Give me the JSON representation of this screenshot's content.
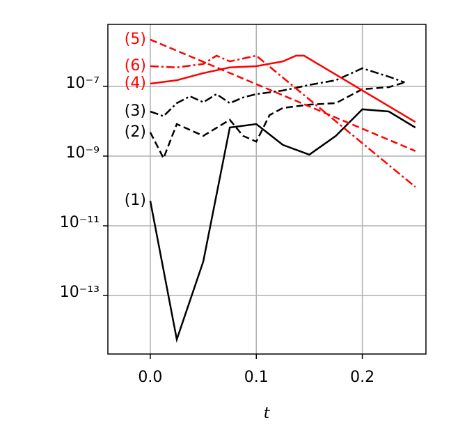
{
  "chart_data": {
    "type": "line",
    "xlabel": "t",
    "yscale": "log",
    "grid": true,
    "xlim": [
      -0.04,
      0.26
    ],
    "ylim": [
      2.1e-15,
      6e-06
    ],
    "xticks": [
      {
        "value": 0,
        "label": "0.0"
      },
      0.1,
      0.2
    ],
    "yticks": [
      {
        "value": 1e-07,
        "label": "10⁻⁷"
      },
      {
        "value": 1e-09,
        "label": "10⁻⁹"
      },
      {
        "value": 1e-11,
        "label": "10⁻¹¹"
      },
      {
        "value": 1e-13,
        "label": "10⁻¹³"
      }
    ],
    "series": [
      {
        "name": "(1)",
        "color": "#000000",
        "linestyle": "solid",
        "x": [
          0,
          0.025,
          0.05,
          0.075,
          0.1,
          0.125,
          0.15,
          0.175,
          0.2,
          0.225,
          0.25
        ],
        "values": [
          5.2e-11,
          5.5e-15,
          9.5e-13,
          6.6e-09,
          8.3e-09,
          2.1e-09,
          1.1e-09,
          3.8e-09,
          2.2e-08,
          1.9e-08,
          6.6e-09
        ]
      },
      {
        "name": "(2)",
        "color": "#000000",
        "linestyle": "dashed",
        "x": [
          0,
          0.0125,
          0.025,
          0.05,
          0.075,
          0.0875,
          0.1,
          0.1125,
          0.125,
          0.15,
          0.175,
          0.2,
          0.225,
          0.24
        ],
        "values": [
          4.8e-09,
          8.7e-10,
          8.3e-09,
          3.8e-09,
          1.1e-08,
          3.8e-09,
          2.6e-09,
          1.5e-08,
          2.4e-08,
          3e-08,
          3.3e-08,
          8.3e-08,
          9.5e-08,
          1.3e-07
        ]
      },
      {
        "name": "(3)",
        "color": "#000000",
        "linestyle": "dashdot",
        "x": [
          0,
          0.0125,
          0.025,
          0.0375,
          0.05,
          0.0625,
          0.075,
          0.0875,
          0.1,
          0.125,
          0.15,
          0.175,
          0.2,
          0.225,
          0.24
        ],
        "values": [
          1.9e-08,
          1.4e-08,
          3.3e-08,
          5.2e-08,
          3.5e-08,
          6e-08,
          3.3e-08,
          4.8e-08,
          6e-08,
          7.6e-08,
          1.1e-07,
          1.5e-07,
          3.3e-07,
          1.9e-07,
          1.3e-07
        ]
      },
      {
        "name": "(4)",
        "color": "#ff0000",
        "linestyle": "solid",
        "x": [
          0,
          0.025,
          0.05,
          0.075,
          0.1,
          0.125,
          0.1375,
          0.145,
          0.25
        ],
        "values": [
          1.2e-07,
          1.5e-07,
          2.4e-07,
          3.5e-07,
          3.8e-07,
          5.2e-07,
          7.6e-07,
          7.6e-07,
          9.5e-09
        ]
      },
      {
        "name": "(5)",
        "color": "#ff0000",
        "linestyle": "dashed",
        "x": [
          0,
          0.25
        ],
        "values": [
          2.2e-06,
          1.4e-09
        ]
      },
      {
        "name": "(6)",
        "color": "#ff0000",
        "linestyle": "dashdot",
        "x": [
          0,
          0.025,
          0.05,
          0.0625,
          0.075,
          0.1,
          0.25
        ],
        "values": [
          3.8e-07,
          3.5e-07,
          4.4e-07,
          7.6e-07,
          5.2e-07,
          7.6e-07,
          1.3e-10
        ]
      }
    ]
  }
}
